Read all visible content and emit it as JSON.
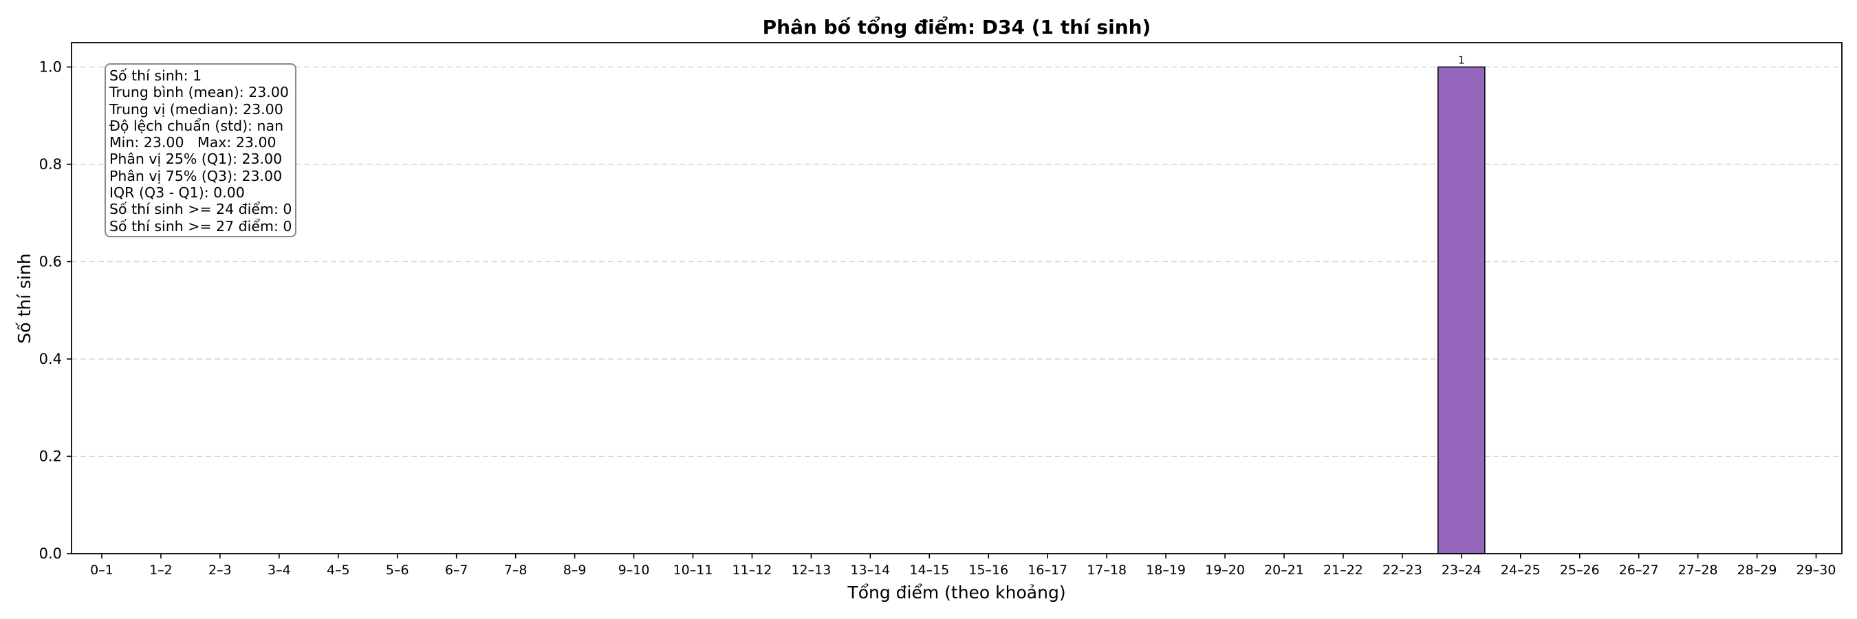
{
  "chart_data": {
    "type": "bar",
    "title": "Phân bố tổng điểm: D34 (1 thí sinh)",
    "xlabel": "Tổng điểm (theo khoảng)",
    "ylabel": "Số thí sinh",
    "ylim": [
      0,
      1.05
    ],
    "yticks": [
      "0.0",
      "0.2",
      "0.4",
      "0.6",
      "0.8",
      "1.0"
    ],
    "grid": "y-dashed",
    "bar_color": "#9467bd",
    "categories": [
      "0–1",
      "1–2",
      "2–3",
      "3–4",
      "4–5",
      "5–6",
      "6–7",
      "7–8",
      "8–9",
      "9–10",
      "10–11",
      "11–12",
      "12–13",
      "13–14",
      "14–15",
      "15–16",
      "16–17",
      "17–18",
      "18–19",
      "19–20",
      "20–21",
      "21–22",
      "22–23",
      "23–24",
      "24–25",
      "25–26",
      "26–27",
      "27–28",
      "28–29",
      "29–30"
    ],
    "values": [
      0,
      0,
      0,
      0,
      0,
      0,
      0,
      0,
      0,
      0,
      0,
      0,
      0,
      0,
      0,
      0,
      0,
      0,
      0,
      0,
      0,
      0,
      0,
      1,
      0,
      0,
      0,
      0,
      0,
      0
    ],
    "bar_labels": [
      {
        "category": "23–24",
        "text": "1"
      }
    ]
  },
  "stats_box": {
    "position": "top-left",
    "lines": [
      "Số thí sinh: 1",
      "Trung bình (mean): 23.00",
      "Trung vị (median): 23.00",
      "Độ lệch chuẩn (std): nan",
      "Min: 23.00   Max: 23.00",
      "Phân vị 25% (Q1): 23.00",
      "Phân vị 75% (Q3): 23.00",
      "IQR (Q3 - Q1): 0.00",
      "Số thí sinh >= 24 điểm: 0",
      "Số thí sinh >= 27 điểm: 0"
    ]
  }
}
